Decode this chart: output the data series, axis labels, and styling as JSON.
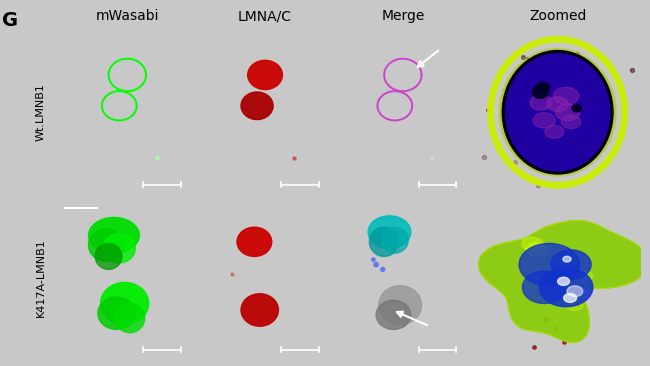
{
  "panel_label": "G",
  "col_headers": [
    "mWasabi",
    "LMNA/C",
    "Merge",
    "Zoomed"
  ],
  "row_labels": [
    "Wt.LMNB1",
    "K417A-LMNB1"
  ],
  "outer_bg": "#c8c8c8",
  "panel_bg": "#000000",
  "header_fontsize": 10,
  "row_label_fontsize": 8,
  "panel_label_fontsize": 14,
  "header_color": "#000000",
  "row_label_color": "#000000"
}
